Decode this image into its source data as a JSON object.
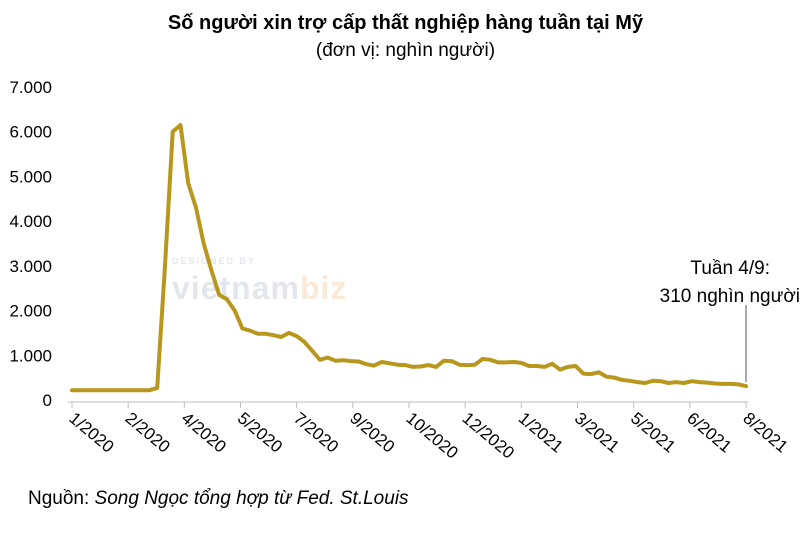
{
  "chart_data": {
    "type": "line",
    "title": "Số người xin trợ cấp thất nghiệp hàng tuần tại Mỹ",
    "subtitle": "(đơn vị: nghìn người)",
    "ylim": [
      0,
      7000
    ],
    "y_ticks": [
      0,
      1000,
      2000,
      3000,
      4000,
      5000,
      6000,
      7000
    ],
    "y_tick_labels": [
      "0",
      "1.000",
      "2.000",
      "3.000",
      "4.000",
      "5.000",
      "6.000",
      "7.000"
    ],
    "x_tick_labels": [
      "1/2020",
      "2/2020",
      "4/2020",
      "5/2020",
      "7/2020",
      "9/2020",
      "10/2020",
      "12/2020",
      "1/2021",
      "3/2021",
      "5/2021",
      "6/2021",
      "8/2021"
    ],
    "series": [
      {
        "color": "#b8971c",
        "values": [
          220,
          220,
          220,
          220,
          220,
          220,
          220,
          220,
          220,
          220,
          220,
          270,
          3000,
          6000,
          6150,
          4850,
          4300,
          3500,
          2900,
          2350,
          2250,
          2000,
          1600,
          1550,
          1480,
          1480,
          1450,
          1410,
          1500,
          1430,
          1300,
          1100,
          900,
          950,
          880,
          890,
          870,
          860,
          800,
          770,
          850,
          820,
          790,
          780,
          740,
          750,
          780,
          740,
          880,
          870,
          790,
          780,
          790,
          920,
          900,
          840,
          840,
          850,
          830,
          760,
          760,
          740,
          810,
          680,
          740,
          760,
          590,
          580,
          620,
          520,
          500,
          450,
          430,
          400,
          380,
          430,
          420,
          380,
          400,
          380,
          420,
          400,
          390,
          370,
          360,
          360,
          350,
          310
        ]
      }
    ],
    "annotation": {
      "text_line1": "Tuần 4/9:",
      "text_line2": "310 nghìn người"
    },
    "grid": false
  },
  "watermark": {
    "top": "DESIGNED BY",
    "brand1": "vietnam",
    "brand2": "biz"
  },
  "source": {
    "label": "Nguồn: ",
    "text": "Song Ngọc tổng hợp từ Fed. St.Louis"
  }
}
